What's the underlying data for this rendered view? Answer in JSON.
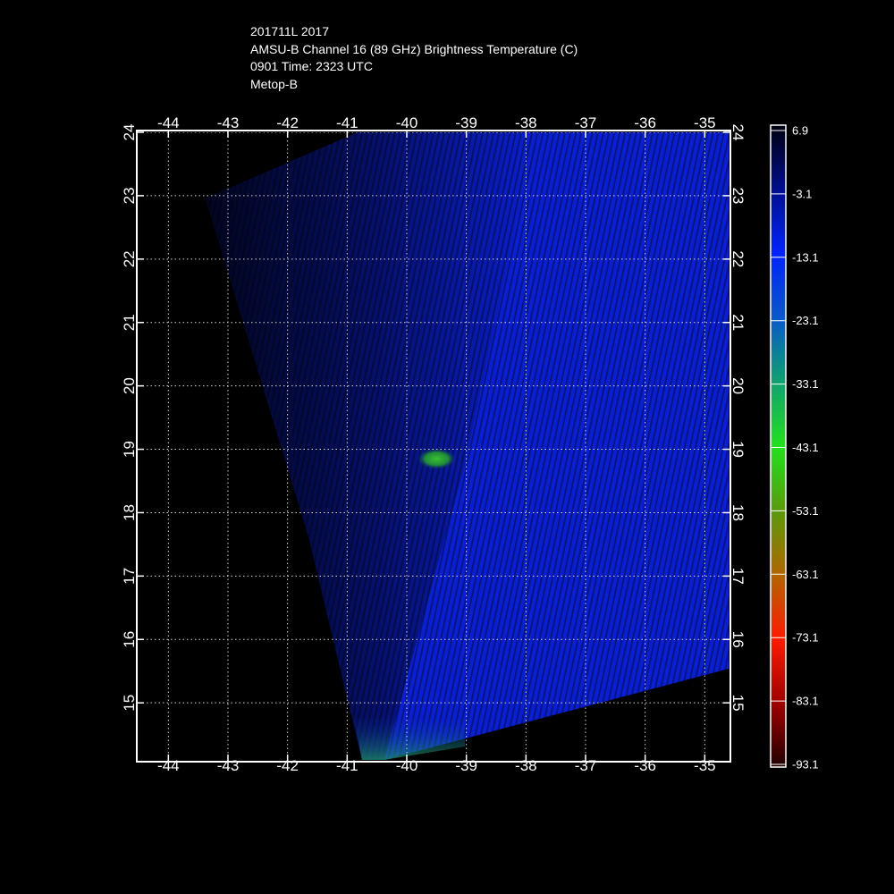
{
  "header": {
    "storm_line": "201711L 2017",
    "product_line": "AMSU-B Channel 16 (89 GHz) Brightness Temperature (C)",
    "time_line": "0901 Time: 2323 UTC",
    "satellite_line": "Metop-B"
  },
  "map": {
    "lon_ticks": [
      "-44",
      "-43",
      "-42",
      "-41",
      "-40",
      "-39",
      "-38",
      "-37",
      "-36",
      "-35"
    ],
    "lat_ticks": [
      "15",
      "16",
      "17",
      "18",
      "19",
      "20",
      "21",
      "22",
      "23",
      "24"
    ],
    "lon_range": [
      -44.5,
      -34.6
    ],
    "lat_range": [
      14.1,
      24.0
    ],
    "grid": true,
    "features": [
      {
        "name": "swath",
        "color": "#0a1fd0"
      },
      {
        "name": "cold-spot",
        "lon": -39.5,
        "lat": 18.85,
        "color": "#2fa52a"
      },
      {
        "name": "cold-edge",
        "lon": -39.9,
        "lat": 14.4,
        "color": "#1f8a5c"
      }
    ]
  },
  "colorbar": {
    "labels": [
      "6.9",
      "-3.1",
      "-13.1",
      "-23.1",
      "-33.1",
      "-43.1",
      "-53.1",
      "-63.1",
      "-73.1",
      "-83.1",
      "-93.1"
    ],
    "stops": [
      "#000010",
      "#000f8a",
      "#0022ff",
      "#0a58c8",
      "#12a070",
      "#22e020",
      "#5a9a10",
      "#b06600",
      "#ff1a00",
      "#a00000",
      "#200000"
    ]
  }
}
